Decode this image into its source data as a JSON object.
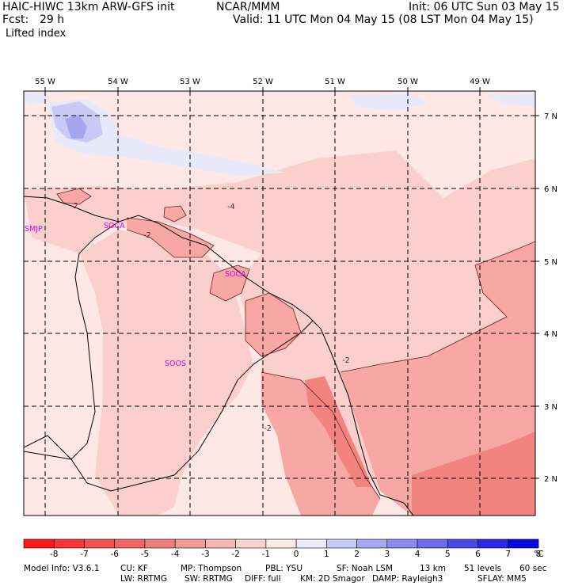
{
  "header": {
    "title_left": "HAIC-HIWC 13km ARW-GFS init",
    "title_center": "NCAR/MMM",
    "init": "Init: 06 UTC Sun 03 May 15",
    "fcst_label": "Fcst:",
    "fcst_value": "29 h",
    "valid": "Valid: 11 UTC Mon 04 May 15 (08 LST Mon 04 May 15)",
    "field": "Lifted index"
  },
  "map": {
    "lon_labels": [
      "55 W",
      "54 W",
      "53 W",
      "52 W",
      "51 W",
      "50 W",
      "49 W"
    ],
    "lat_labels": [
      "7 N",
      "6 N",
      "5 N",
      "4 N",
      "3 N",
      "2 N"
    ],
    "stations": [
      "SMJP",
      "SOCA",
      "SOOS"
    ],
    "station_soca_label": "SOCA",
    "station_soca2_label": "SOCA",
    "contour_labels": [
      "-2",
      "-2",
      "-4",
      "-2",
      "-2"
    ],
    "colors": {
      "pink_light": "#fde8e6",
      "pink_mid": "#fbcfcb",
      "pink_dark": "#f7a8a4",
      "red_strong": "#f28480",
      "blue_light": "#e8e8fb",
      "blue_mid": "#c9c9f6",
      "blue_dark": "#a6a6ef"
    }
  },
  "colorbar": {
    "labels": [
      "-8",
      "-7",
      "-6",
      "-5",
      "-4",
      "-3",
      "-2",
      "-1",
      "0",
      "1",
      "2",
      "3",
      "4",
      "5",
      "6",
      "7",
      "8"
    ],
    "unit": "°C",
    "colors": [
      "#ff1a1a",
      "#fc3535",
      "#f85050",
      "#f46666",
      "#f07e7e",
      "#f39a98",
      "#f7b4b1",
      "#fbd0cd",
      "#fde9e7",
      "#ebebfb",
      "#c9c9f7",
      "#a9a9f3",
      "#8a8aef",
      "#6b6beb",
      "#4a4ae7",
      "#2a2ae3",
      "#0808df"
    ]
  },
  "footer": {
    "line1": [
      "Model Info: V3.6.1",
      "CU: KF",
      "MP: Thompson",
      "PBL: YSU",
      "SF: Noah LSM",
      "13 km",
      "51 levels",
      "60 sec"
    ],
    "line2": [
      "LW: RRTMG",
      "SW: RRTMG",
      "DIFF: full",
      "KM: 2D Smagor",
      "DAMP: Rayleigh3",
      "SFLAY: MM5"
    ]
  }
}
